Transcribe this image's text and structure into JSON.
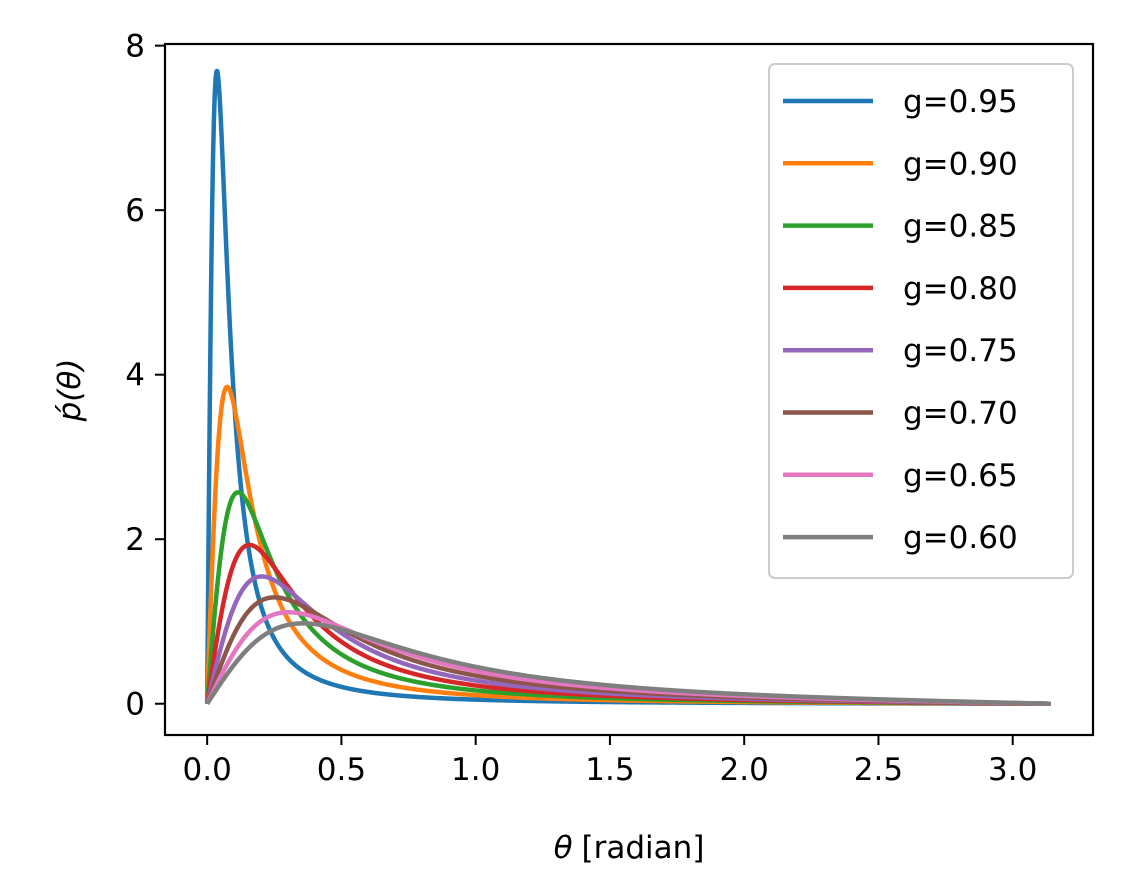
{
  "chart_data": {
    "type": "line",
    "xlabel_symbol": "θ",
    "xlabel_unit": "[radian]",
    "ylabel": "ṕ(θ)",
    "xlim": [
      -0.157,
      3.299
    ],
    "ylim": [
      -0.38,
      8.02
    ],
    "xticks": [
      0.0,
      0.5,
      1.0,
      1.5,
      2.0,
      2.5,
      3.0
    ],
    "xtick_labels": [
      "0.0",
      "0.5",
      "1.0",
      "1.5",
      "2.0",
      "2.5",
      "3.0"
    ],
    "yticks": [
      0,
      2,
      4,
      6,
      8
    ],
    "ytick_labels": [
      "0",
      "2",
      "4",
      "6",
      "8"
    ],
    "x_range": [
      0,
      3.14159
    ],
    "legend_position": "upper-right",
    "grid": false,
    "series": [
      {
        "name": "g=0.95",
        "g": 0.95,
        "color": "#1f77b4"
      },
      {
        "name": "g=0.90",
        "g": 0.9,
        "color": "#ff7f0e"
      },
      {
        "name": "g=0.85",
        "g": 0.85,
        "color": "#2ca02c"
      },
      {
        "name": "g=0.80",
        "g": 0.8,
        "color": "#d62728"
      },
      {
        "name": "g=0.75",
        "g": 0.75,
        "color": "#9467bd"
      },
      {
        "name": "g=0.70",
        "g": 0.7,
        "color": "#8c564b"
      },
      {
        "name": "g=0.65",
        "g": 0.65,
        "color": "#e377c2"
      },
      {
        "name": "g=0.60",
        "g": 0.6,
        "color": "#7f7f7f"
      }
    ]
  }
}
